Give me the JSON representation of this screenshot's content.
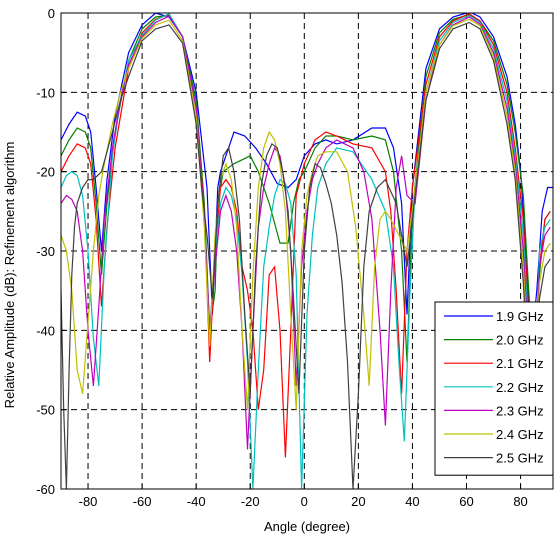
{
  "chart_data": {
    "type": "line",
    "xlabel": "Angle (degree)",
    "ylabel": "Relative Amplitude (dB): Refinement algorithm",
    "xlim": [
      -90,
      92
    ],
    "ylim": [
      -60,
      0
    ],
    "xticks": [
      -80,
      -60,
      -40,
      -20,
      0,
      20,
      40,
      60,
      80
    ],
    "yticks": [
      0,
      -10,
      -20,
      -30,
      -40,
      -50,
      -60
    ],
    "grid": true,
    "grid_style": "dashed",
    "legend_position": "bottom-right",
    "series": [
      {
        "name": "1.9 GHz",
        "color": "#0000ff",
        "x": [
          -90,
          -87,
          -84,
          -81,
          -79,
          -77,
          -75,
          -73,
          -70,
          -65,
          -60,
          -55,
          -50,
          -45,
          -40,
          -36,
          -34,
          -33,
          -32,
          -31,
          -29,
          -26,
          -22,
          -18,
          -14,
          -10,
          -6,
          -3,
          0,
          4,
          8,
          12,
          18,
          25,
          30,
          33,
          36,
          38,
          40,
          45,
          50,
          55,
          60,
          62,
          65,
          70,
          75,
          78,
          80,
          82,
          84,
          86,
          88,
          90,
          92
        ],
        "y": [
          -16,
          -14,
          -12.5,
          -13,
          -15,
          -22,
          -30,
          -21,
          -13,
          -5,
          -1.5,
          0,
          -0.5,
          -3,
          -10,
          -22,
          -38,
          -30,
          -22,
          -20,
          -18,
          -15,
          -15.5,
          -17,
          -19,
          -21.5,
          -22,
          -21,
          -18,
          -16.5,
          -16,
          -16.5,
          -16,
          -14.5,
          -14.5,
          -17,
          -24,
          -38,
          -22,
          -7,
          -2,
          -0.5,
          0,
          0,
          -0.5,
          -3,
          -8,
          -14,
          -20,
          -30,
          -42,
          -35,
          -25,
          -22,
          -22
        ]
      },
      {
        "name": "2.0 GHz",
        "color": "#008000",
        "x": [
          -90,
          -87,
          -84,
          -81,
          -79,
          -77,
          -75,
          -73,
          -70,
          -65,
          -60,
          -55,
          -50,
          -45,
          -40,
          -37,
          -35,
          -33,
          -32,
          -30,
          -26,
          -23,
          -20,
          -17,
          -13,
          -9,
          -6,
          -4,
          -2,
          0,
          4,
          8,
          12,
          18,
          25,
          30,
          33,
          36,
          38,
          40,
          45,
          50,
          55,
          61,
          65,
          70,
          75,
          78,
          81,
          83,
          85,
          87,
          89,
          91
        ],
        "y": [
          -18,
          -16,
          -14.5,
          -15,
          -17,
          -24,
          -33,
          -24,
          -15,
          -6,
          -2,
          -0.5,
          -0.3,
          -3,
          -11,
          -24,
          -40,
          -35,
          -24,
          -20,
          -19,
          -18.5,
          -18,
          -20,
          -24,
          -29,
          -29,
          -24,
          -21,
          -20,
          -17,
          -15.5,
          -15.5,
          -16,
          -15.5,
          -16,
          -20,
          -30,
          -44,
          -25,
          -8,
          -2.5,
          -0.8,
          -0.2,
          -1,
          -3.5,
          -9,
          -15,
          -23,
          -35,
          -45,
          -33,
          -26,
          -25
        ]
      },
      {
        "name": "2.1 GHz",
        "color": "#ff0000",
        "x": [
          -90,
          -87,
          -84,
          -81,
          -79,
          -77,
          -75,
          -73,
          -70,
          -65,
          -60,
          -55,
          -50,
          -45,
          -40,
          -37,
          -35,
          -33,
          -31,
          -29,
          -27,
          -25,
          -23,
          -21,
          -19,
          -17,
          -15,
          -13,
          -11,
          -9,
          -7,
          -5,
          -3,
          0,
          4,
          8,
          12,
          18,
          25,
          30,
          32,
          34,
          36,
          38,
          40,
          45,
          50,
          55,
          61,
          65,
          70,
          75,
          78,
          81,
          83,
          85,
          87,
          89,
          91
        ],
        "y": [
          -20,
          -18,
          -16.5,
          -17,
          -19,
          -26,
          -37,
          -27,
          -17,
          -7,
          -2.5,
          -0.8,
          -0.2,
          -3,
          -12,
          -25,
          -44,
          -30,
          -22,
          -21,
          -22,
          -25,
          -32,
          -35,
          -40,
          -50,
          -45,
          -33,
          -32,
          -40,
          -56,
          -40,
          -23,
          -19,
          -16,
          -15,
          -15.5,
          -16.5,
          -17,
          -20,
          -25,
          -35,
          -48,
          -30,
          -22,
          -9,
          -3,
          -1,
          -0.1,
          -1,
          -4,
          -10,
          -17,
          -26,
          -38,
          -48,
          -32,
          -26,
          -25
        ]
      },
      {
        "name": "2.2 GHz",
        "color": "#00c0c0",
        "x": [
          -90,
          -88,
          -86,
          -84,
          -82,
          -80,
          -78,
          -76,
          -74,
          -71,
          -68,
          -65,
          -60,
          -55,
          -50,
          -45,
          -40,
          -37,
          -35,
          -33,
          -31,
          -29,
          -27,
          -25,
          -23,
          -21,
          -19,
          -17,
          -15,
          -13,
          -11,
          -9,
          -7,
          -5,
          -3,
          -1,
          1,
          3,
          5,
          8,
          12,
          18,
          25,
          30,
          33,
          35,
          37,
          39,
          41,
          45,
          50,
          55,
          61,
          65,
          70,
          75,
          78,
          81,
          83,
          85,
          87,
          89,
          91
        ],
        "y": [
          -22,
          -20.5,
          -20,
          -20.5,
          -23,
          -30,
          -41,
          -47,
          -32,
          -18,
          -11,
          -6,
          -2.8,
          -0.9,
          -0.1,
          -3,
          -12,
          -26,
          -40,
          -30,
          -24,
          -22,
          -23,
          -26,
          -33,
          -44,
          -60,
          -45,
          -32,
          -27,
          -23,
          -21,
          -21.5,
          -24,
          -33,
          -60,
          -38,
          -28,
          -22,
          -19,
          -17,
          -17.5,
          -21,
          -25,
          -32,
          -44,
          -54,
          -36,
          -22,
          -10,
          -3.5,
          -1.2,
          -0.3,
          -1.2,
          -4.5,
          -11,
          -18,
          -28,
          -40,
          -50,
          -30,
          -27,
          -26
        ]
      },
      {
        "name": "2.3 GHz",
        "color": "#c000c0",
        "x": [
          -90,
          -88,
          -86,
          -84,
          -82,
          -80,
          -78,
          -76,
          -74,
          -71,
          -68,
          -65,
          -60,
          -55,
          -50,
          -45,
          -40,
          -37,
          -35,
          -33,
          -31,
          -29,
          -27,
          -25,
          -23,
          -21,
          -19,
          -17,
          -15,
          -13,
          -11,
          -9,
          -7,
          -5,
          -3,
          -1,
          1,
          3,
          5,
          8,
          12,
          18,
          22,
          25,
          28,
          30,
          32,
          34,
          36,
          38,
          41,
          45,
          50,
          55,
          61,
          65,
          70,
          75,
          78,
          81,
          83,
          85,
          87,
          89,
          91
        ],
        "y": [
          -24,
          -23,
          -23.5,
          -25,
          -30,
          -40,
          -47,
          -37,
          -26,
          -17,
          -11,
          -6.5,
          -3,
          -1.2,
          -0.4,
          -3,
          -12,
          -26,
          -40,
          -32,
          -25,
          -23,
          -25,
          -30,
          -40,
          -55,
          -40,
          -27,
          -22,
          -19,
          -17,
          -18,
          -22,
          -30,
          -47,
          -32,
          -25,
          -21,
          -19,
          -17,
          -16,
          -17,
          -20,
          -26,
          -40,
          -52,
          -35,
          -22,
          -18,
          -23,
          -24,
          -11,
          -4,
          -1.5,
          -0.5,
          -1.4,
          -5,
          -12,
          -19,
          -30,
          -42,
          -50,
          -32,
          -28,
          -27
        ]
      },
      {
        "name": "2.4 GHz",
        "color": "#c0c000",
        "x": [
          -90,
          -88,
          -86,
          -84,
          -82,
          -80,
          -78,
          -76,
          -74,
          -71,
          -68,
          -65,
          -60,
          -55,
          -50,
          -45,
          -40,
          -37,
          -35,
          -33,
          -31,
          -29,
          -27,
          -25,
          -23,
          -21,
          -19,
          -17,
          -15,
          -13,
          -11,
          -9,
          -7,
          -5,
          -3,
          -1,
          1,
          3,
          5,
          8,
          12,
          16,
          19,
          22,
          24,
          26,
          28,
          30,
          32,
          35,
          38,
          41,
          45,
          50,
          55,
          61,
          65,
          70,
          75,
          78,
          81,
          83,
          85,
          87,
          89,
          91
        ],
        "y": [
          -28,
          -30,
          -35,
          -45,
          -48,
          -39,
          -30,
          -23,
          -19,
          -14,
          -10,
          -7,
          -3.2,
          -1.5,
          -0.9,
          -3.5,
          -13,
          -27,
          -42,
          -28,
          -21,
          -19,
          -21,
          -27,
          -40,
          -50,
          -33,
          -22,
          -17,
          -15,
          -16,
          -19,
          -25,
          -38,
          -50,
          -30,
          -23,
          -20,
          -18,
          -17.5,
          -17.5,
          -20,
          -27,
          -38,
          -47,
          -32,
          -26,
          -25,
          -26,
          -28,
          -30,
          -22,
          -10,
          -4,
          -1.6,
          -0.8,
          -1.6,
          -5.5,
          -13,
          -20,
          -32,
          -44,
          -50,
          -34,
          -30,
          -29
        ]
      },
      {
        "name": "2.5 GHz",
        "color": "#404040",
        "x": [
          -90,
          -89,
          -88,
          -87,
          -86,
          -85,
          -84,
          -82,
          -80,
          -78,
          -75,
          -71,
          -68,
          -65,
          -60,
          -55,
          -50,
          -45,
          -40,
          -38,
          -36,
          -34,
          -32,
          -30,
          -28,
          -26,
          -24,
          -22,
          -20,
          -18,
          -16,
          -14,
          -12,
          -10,
          -8,
          -6,
          -4,
          -2,
          0,
          2,
          4,
          6,
          8,
          10,
          12,
          14,
          16,
          18,
          20,
          22,
          24,
          27,
          30,
          34,
          38,
          41,
          45,
          50,
          55,
          61,
          65,
          70,
          75,
          78,
          81,
          83,
          85,
          87,
          89,
          91
        ],
        "y": [
          -35,
          -50,
          -60,
          -45,
          -33,
          -27,
          -24,
          -22,
          -21,
          -21,
          -20,
          -15,
          -11,
          -8,
          -3.5,
          -2,
          -1.5,
          -3.8,
          -14,
          -22,
          -28,
          -36,
          -24,
          -18,
          -17,
          -20,
          -26,
          -38,
          -48,
          -32,
          -22,
          -18,
          -16.5,
          -17,
          -20,
          -25,
          -36,
          -48,
          -30,
          -22,
          -19,
          -19.5,
          -21.5,
          -24,
          -28,
          -34,
          -44,
          -60,
          -48,
          -32,
          -25,
          -22,
          -21,
          -24,
          -32,
          -23,
          -11,
          -4.5,
          -2,
          -1.2,
          -2,
          -6,
          -14,
          -21,
          -34,
          -46,
          -52,
          -36,
          -32,
          -31
        ]
      }
    ]
  }
}
